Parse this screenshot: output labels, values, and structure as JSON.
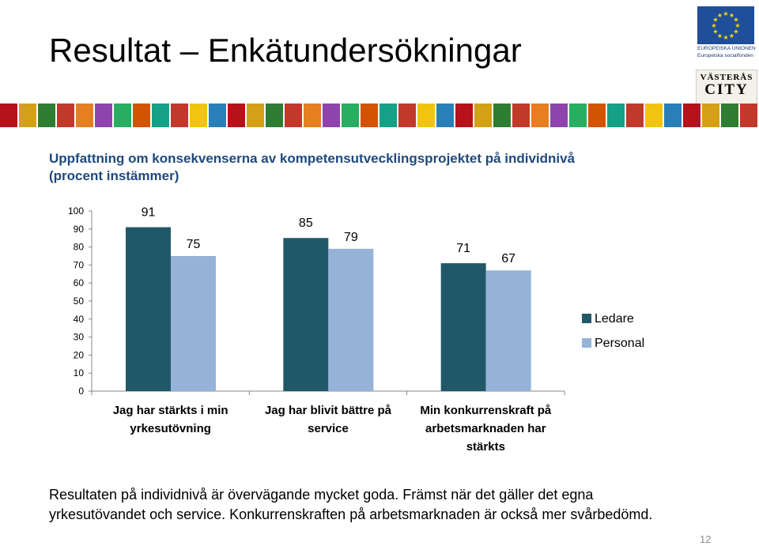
{
  "page": {
    "title": "Resultat – Enkätundersökningar",
    "page_number": "12"
  },
  "logos": {
    "eu_line1": "EUROPEISKA UNIONEN",
    "eu_line2": "Europeiska socialfonden",
    "city_line1": "VÄSTERÅS",
    "city_line2": "CITY"
  },
  "chart_heading": {
    "line1": "Uppfattning om konsekvenserna av kompetensutvecklingsprojektet på individnivå",
    "line2": "(procent instämmer)"
  },
  "colors": {
    "ledare": "#215868",
    "personal": "#95b3d7",
    "heading": "#1f497d"
  },
  "chart_data": {
    "type": "bar",
    "categories": [
      "Jag har stärkts i min yrkesutövning",
      "Jag har blivit bättre på service",
      "Min konkurrenskraft på arbetsmarknaden har stärkts"
    ],
    "category_lines": [
      [
        "Jag har stärkts i min",
        "yrkesutövning"
      ],
      [
        "Jag har blivit bättre på",
        "service"
      ],
      [
        "Min konkurrenskraft på",
        "arbetsmarknaden har",
        "stärkts"
      ]
    ],
    "series": [
      {
        "name": "Ledare",
        "values": [
          91,
          85,
          71
        ]
      },
      {
        "name": "Personal",
        "values": [
          75,
          79,
          67
        ]
      }
    ],
    "ylim": [
      0,
      100
    ],
    "yticks": [
      0,
      10,
      20,
      30,
      40,
      50,
      60,
      70,
      80,
      90,
      100
    ],
    "legend": "right",
    "grid": false
  },
  "note": {
    "text": "Resultaten på individnivå är övervägande mycket goda. Främst när det gäller det egna yrkesutövandet och service. Konkurrenskraften på arbetsmarknaden är också mer svårbedömd."
  }
}
